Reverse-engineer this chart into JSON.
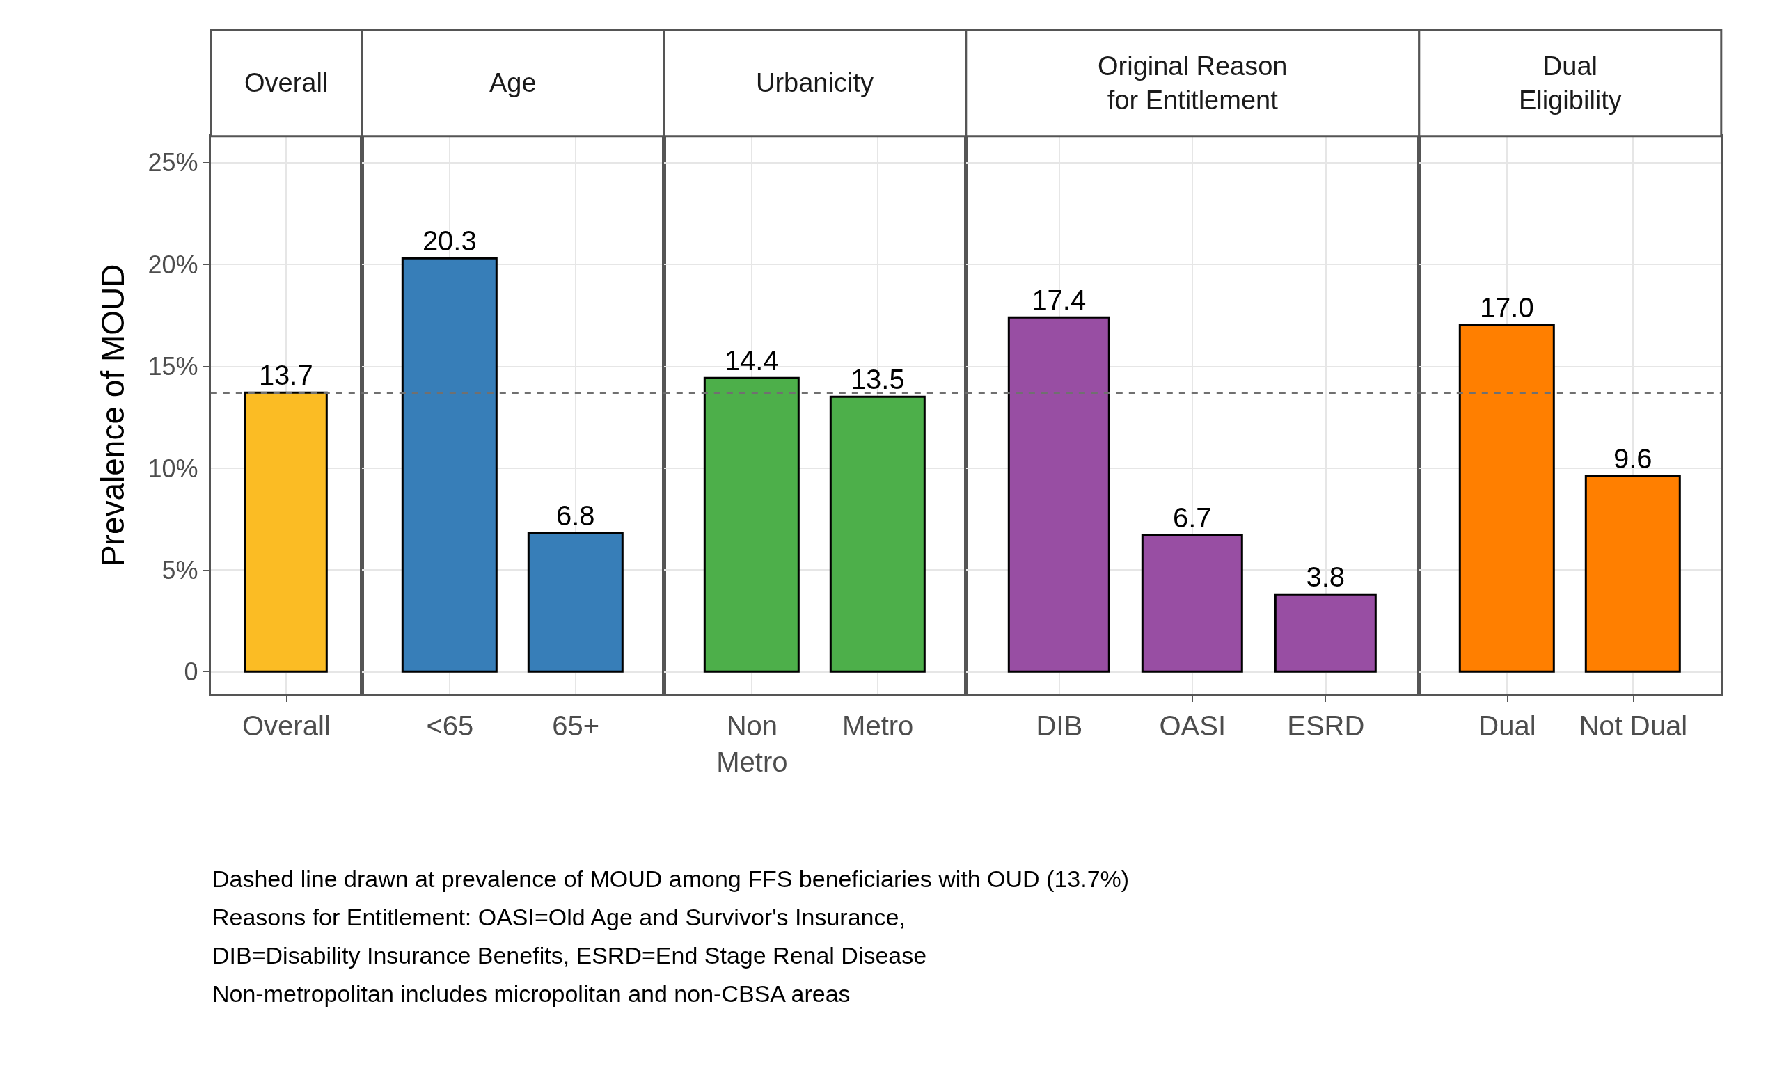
{
  "chart_data": [
    {
      "type": "bar",
      "title": "Overall",
      "ylabel": "Prevalence of MOUD",
      "categories": [
        "Overall"
      ],
      "values": [
        13.7
      ],
      "colors": [
        "#fbbc24"
      ],
      "data_labels": true,
      "ylim": [
        -1.1,
        26.3
      ],
      "yticks": [
        0,
        {
          "value": 5,
          "label": "5%"
        },
        {
          "value": 10,
          "label": "10%"
        },
        {
          "value": 15,
          "label": "15%"
        },
        {
          "value": 20,
          "label": "20%"
        },
        {
          "value": 25,
          "label": "25%"
        }
      ],
      "ref_lines": [
        {
          "axis": "y",
          "value": 13.7,
          "line_style": "dashed",
          "color": "#707070"
        }
      ],
      "grid": true,
      "annotations": [
        "Dashed line drawn at prevalence of MOUD among FFS beneficiaries with OUD (13.7%)",
        "Reasons for Entitlement: OASI=Old Age and Survivor's Insurance,",
        "DIB=Disability Insurance Benefits, ESRD=End Stage Renal Disease",
        "Non-metropolitan includes micropolitan and non-CBSA areas"
      ]
    },
    {
      "type": "bar",
      "title": "Age",
      "categories": [
        "<65",
        "65+"
      ],
      "values": [
        20.3,
        6.8
      ],
      "colors": [
        "#377eb8",
        "#377eb8"
      ],
      "data_labels": true,
      "ylim": [
        -1.1,
        26.3
      ],
      "yticks": [
        {
          "value": 0,
          "label": null
        },
        {
          "value": 5,
          "label": null
        },
        {
          "value": 10,
          "label": null
        },
        {
          "value": 15,
          "label": null
        },
        {
          "value": 20,
          "label": null
        },
        {
          "value": 25,
          "label": null
        }
      ],
      "tick_labels": "x",
      "ref_lines": [
        {
          "axis": "y",
          "value": 13.7,
          "line_style": "dashed",
          "color": "#707070"
        }
      ],
      "grid": true
    },
    {
      "type": "bar",
      "title": "Urbanicity",
      "categories": [
        "Non\nMetro",
        "Metro"
      ],
      "values": [
        14.4,
        13.5
      ],
      "colors": [
        "#4daf4a",
        "#4daf4a"
      ],
      "data_labels": true,
      "ylim": [
        -1.1,
        26.3
      ],
      "yticks": [
        {
          "value": 0,
          "label": null
        },
        {
          "value": 5,
          "label": null
        },
        {
          "value": 10,
          "label": null
        },
        {
          "value": 15,
          "label": null
        },
        {
          "value": 20,
          "label": null
        },
        {
          "value": 25,
          "label": null
        }
      ],
      "tick_labels": "x",
      "ref_lines": [
        {
          "axis": "y",
          "value": 13.7,
          "line_style": "dashed",
          "color": "#707070"
        }
      ],
      "grid": true
    },
    {
      "type": "bar",
      "title": "Original Reason\nfor Entitlement",
      "categories": [
        "DIB",
        "OASI",
        "ESRD"
      ],
      "values": [
        17.4,
        6.7,
        3.8
      ],
      "colors": [
        "#984ea3",
        "#984ea3",
        "#984ea3"
      ],
      "data_labels": true,
      "ylim": [
        -1.1,
        26.3
      ],
      "yticks": [
        {
          "value": 0,
          "label": null
        },
        {
          "value": 5,
          "label": null
        },
        {
          "value": 10,
          "label": null
        },
        {
          "value": 15,
          "label": null
        },
        {
          "value": 20,
          "label": null
        },
        {
          "value": 25,
          "label": null
        }
      ],
      "tick_labels": "x",
      "ref_lines": [
        {
          "axis": "y",
          "value": 13.7,
          "line_style": "dashed",
          "color": "#707070"
        }
      ],
      "grid": true
    },
    {
      "type": "bar",
      "title": "Dual\nEligibility",
      "categories": [
        "Dual",
        "Not Dual"
      ],
      "values": [
        17.0,
        9.6
      ],
      "value_labels": [
        "17.0",
        "9.6"
      ],
      "colors": [
        "#ff7f00",
        "#ff7f00"
      ],
      "ylim": [
        -1.1,
        26.3
      ],
      "yticks": [
        {
          "value": 0,
          "label": null
        },
        {
          "value": 5,
          "label": null
        },
        {
          "value": 10,
          "label": null
        },
        {
          "value": 15,
          "label": null
        },
        {
          "value": 20,
          "label": null
        },
        {
          "value": 25,
          "label": null
        }
      ],
      "tick_labels": "x",
      "ref_lines": [
        {
          "axis": "y",
          "value": 13.7,
          "line_style": "dashed",
          "color": "#707070"
        }
      ],
      "grid": true
    }
  ]
}
